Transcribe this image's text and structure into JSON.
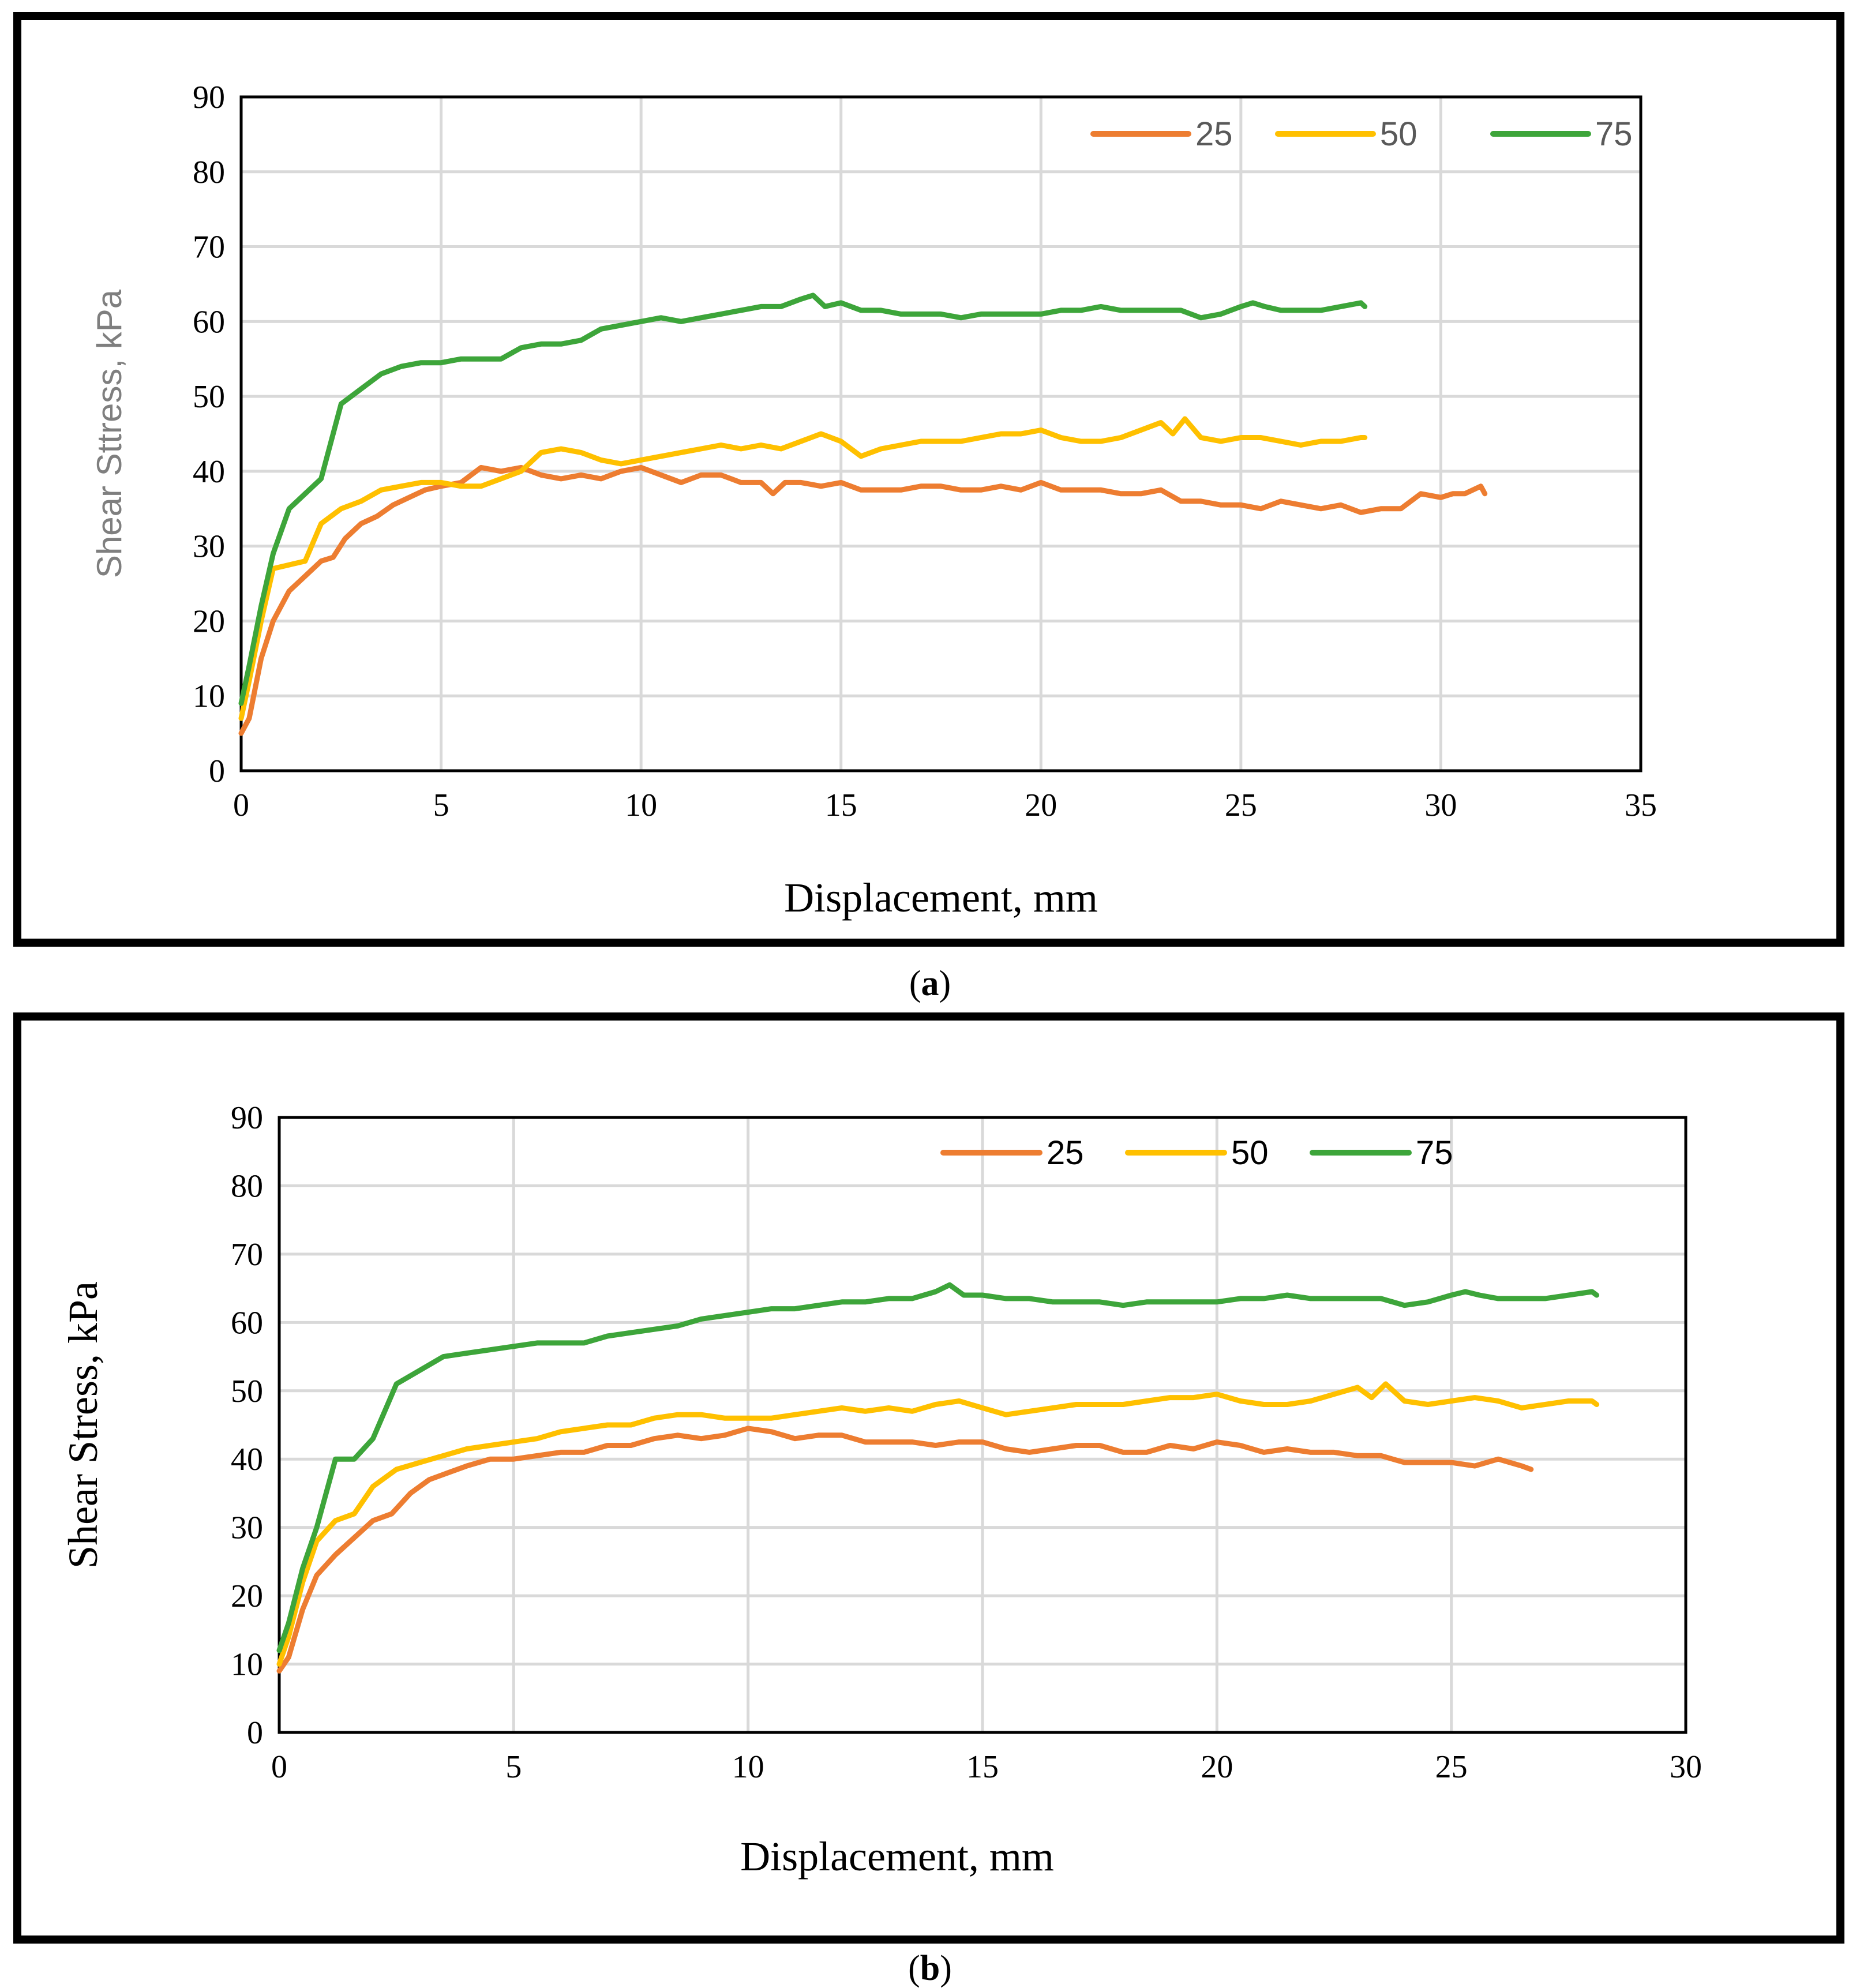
{
  "colors": {
    "s25": "#ED7D31",
    "s50": "#FFC000",
    "s75": "#3DA53A"
  },
  "chart_data": [
    {
      "id": "a",
      "type": "line",
      "caption_letter": "a",
      "xlabel": "Displacement, mm",
      "ylabel": "Shear Sttress, kPa",
      "xlim": [
        0,
        35
      ],
      "ylim": [
        0,
        90
      ],
      "xticks": [
        "0",
        "5",
        "10",
        "15",
        "20",
        "25",
        "30",
        "35"
      ],
      "yticks": [
        "0",
        "10",
        "20",
        "30",
        "40",
        "50",
        "60",
        "70",
        "80",
        "90"
      ],
      "grid": true,
      "legend_position": "top-right",
      "series": [
        {
          "name": "25",
          "color_key": "s25",
          "x": [
            0,
            0.2,
            0.5,
            0.8,
            1.2,
            1.6,
            2,
            2.3,
            2.6,
            3,
            3.4,
            3.8,
            4.2,
            4.6,
            5,
            5.5,
            6,
            6.5,
            7,
            7.5,
            8,
            8.5,
            9,
            9.5,
            10,
            10.5,
            11,
            11.5,
            12,
            12.5,
            13,
            13.3,
            13.6,
            14,
            14.5,
            15,
            15.5,
            16,
            16.5,
            17,
            17.5,
            18,
            18.5,
            19,
            19.5,
            20,
            20.5,
            21,
            21.5,
            22,
            22.5,
            23,
            23.5,
            24,
            24.5,
            25,
            25.5,
            26,
            26.5,
            27,
            27.5,
            28,
            28.5,
            29,
            29.5,
            30,
            30.3,
            30.6,
            31,
            31.1
          ],
          "values": [
            5,
            7,
            15,
            20,
            24,
            26,
            28,
            28.5,
            31,
            33,
            34,
            35.5,
            36.5,
            37.5,
            38,
            38.5,
            40.5,
            40,
            40.5,
            39.5,
            39,
            39.5,
            39,
            40,
            40.5,
            39.5,
            38.5,
            39.5,
            39.5,
            38.5,
            38.5,
            37,
            38.5,
            38.5,
            38,
            38.5,
            37.5,
            37.5,
            37.5,
            38,
            38,
            37.5,
            37.5,
            38,
            37.5,
            38.5,
            37.5,
            37.5,
            37.5,
            37,
            37,
            37.5,
            36,
            36,
            35.5,
            35.5,
            35,
            36,
            35.5,
            35,
            35.5,
            34.5,
            35,
            35,
            37,
            36.5,
            37,
            37,
            38,
            37
          ]
        },
        {
          "name": "50",
          "color_key": "s50",
          "x": [
            0,
            0.2,
            0.5,
            0.8,
            1.2,
            1.6,
            2,
            2.5,
            3,
            3.5,
            4,
            4.5,
            5,
            5.5,
            6,
            6.5,
            7,
            7.5,
            8,
            8.5,
            9,
            9.5,
            10,
            10.5,
            11,
            11.5,
            12,
            12.5,
            13,
            13.5,
            14,
            14.5,
            15,
            15.5,
            16,
            16.5,
            17,
            17.5,
            18,
            18.5,
            19,
            19.5,
            20,
            20.5,
            21,
            21.5,
            22,
            22.5,
            23,
            23.3,
            23.6,
            24,
            24.5,
            25,
            25.5,
            26,
            26.5,
            27,
            27.5,
            28,
            28.1
          ],
          "values": [
            7,
            12,
            20,
            27,
            27.5,
            28,
            33,
            35,
            36,
            37.5,
            38,
            38.5,
            38.5,
            38,
            38,
            39,
            40,
            42.5,
            43,
            42.5,
            41.5,
            41,
            41.5,
            42,
            42.5,
            43,
            43.5,
            43,
            43.5,
            43,
            44,
            45,
            44,
            42,
            43,
            43.5,
            44,
            44,
            44,
            44.5,
            45,
            45,
            45.5,
            44.5,
            44,
            44,
            44.5,
            45.5,
            46.5,
            45,
            47,
            44.5,
            44,
            44.5,
            44.5,
            44,
            43.5,
            44,
            44,
            44.5,
            44.5
          ]
        },
        {
          "name": "75",
          "color_key": "s75",
          "x": [
            0,
            0.2,
            0.5,
            0.8,
            1.2,
            1.6,
            2,
            2.5,
            3,
            3.5,
            4,
            4.5,
            5,
            5.5,
            6,
            6.5,
            7,
            7.5,
            8,
            8.5,
            9,
            9.5,
            10,
            10.5,
            11,
            11.5,
            12,
            12.5,
            13,
            13.5,
            14,
            14.3,
            14.6,
            15,
            15.5,
            16,
            16.5,
            17,
            17.5,
            18,
            18.5,
            19,
            19.5,
            20,
            20.5,
            21,
            21.5,
            22,
            22.5,
            23,
            23.5,
            24,
            24.5,
            25,
            25.3,
            25.6,
            26,
            26.5,
            27,
            27.5,
            28,
            28.1
          ],
          "values": [
            9,
            14,
            22,
            29,
            35,
            37,
            39,
            49,
            51,
            53,
            54,
            54.5,
            54.5,
            55,
            55,
            55,
            56.5,
            57,
            57,
            57.5,
            59,
            59.5,
            60,
            60.5,
            60,
            60.5,
            61,
            61.5,
            62,
            62,
            63,
            63.5,
            62,
            62.5,
            61.5,
            61.5,
            61,
            61,
            61,
            60.5,
            61,
            61,
            61,
            61,
            61.5,
            61.5,
            62,
            61.5,
            61.5,
            61.5,
            61.5,
            60.5,
            61,
            62,
            62.5,
            62,
            61.5,
            61.5,
            61.5,
            62,
            62.5,
            62
          ]
        }
      ]
    },
    {
      "id": "b",
      "type": "line",
      "caption_letter": "b",
      "xlabel": "Displacement, mm",
      "ylabel": "Shear Stress, kPa",
      "xlim": [
        0,
        30
      ],
      "ylim": [
        0,
        90
      ],
      "xticks": [
        "0",
        "5",
        "10",
        "15",
        "20",
        "25",
        "30"
      ],
      "yticks": [
        "0",
        "10",
        "20",
        "30",
        "40",
        "50",
        "60",
        "70",
        "80",
        "90"
      ],
      "grid": true,
      "legend_position": "top-right",
      "series": [
        {
          "name": "25",
          "color_key": "s25",
          "x": [
            0,
            0.2,
            0.5,
            0.8,
            1.2,
            1.6,
            2,
            2.4,
            2.8,
            3.2,
            3.6,
            4,
            4.5,
            5,
            5.5,
            6,
            6.5,
            7,
            7.5,
            8,
            8.5,
            9,
            9.5,
            10,
            10.5,
            11,
            11.5,
            12,
            12.5,
            13,
            13.5,
            14,
            14.5,
            15,
            15.5,
            16,
            16.5,
            17,
            17.5,
            18,
            18.5,
            19,
            19.5,
            20,
            20.5,
            21,
            21.5,
            22,
            22.5,
            23,
            23.5,
            24,
            24.5,
            25,
            25.5,
            26,
            26.5,
            26.7
          ],
          "values": [
            9,
            11,
            18,
            23,
            26,
            28.5,
            31,
            32,
            35,
            37,
            38,
            39,
            40,
            40,
            40.5,
            41,
            41,
            42,
            42,
            43,
            43.5,
            43,
            43.5,
            44.5,
            44,
            43,
            43.5,
            43.5,
            42.5,
            42.5,
            42.5,
            42,
            42.5,
            42.5,
            41.5,
            41,
            41.5,
            42,
            42,
            41,
            41,
            42,
            41.5,
            42.5,
            42,
            41,
            41.5,
            41,
            41,
            40.5,
            40.5,
            39.5,
            39.5,
            39.5,
            39,
            40,
            39,
            38.5
          ]
        },
        {
          "name": "50",
          "color_key": "s50",
          "x": [
            0,
            0.2,
            0.5,
            0.8,
            1.2,
            1.6,
            2,
            2.5,
            3,
            3.5,
            4,
            4.5,
            5,
            5.5,
            6,
            6.5,
            7,
            7.5,
            8,
            8.5,
            9,
            9.5,
            10,
            10.5,
            11,
            11.5,
            12,
            12.5,
            13,
            13.5,
            14,
            14.5,
            15,
            15.5,
            16,
            16.5,
            17,
            17.5,
            18,
            18.5,
            19,
            19.5,
            20,
            20.5,
            21,
            21.5,
            22,
            22.5,
            23,
            23.3,
            23.6,
            24,
            24.5,
            25,
            25.5,
            26,
            26.5,
            27,
            27.5,
            28,
            28.1
          ],
          "values": [
            10,
            14,
            22,
            28,
            31,
            32,
            36,
            38.5,
            39.5,
            40.5,
            41.5,
            42,
            42.5,
            43,
            44,
            44.5,
            45,
            45,
            46,
            46.5,
            46.5,
            46,
            46,
            46,
            46.5,
            47,
            47.5,
            47,
            47.5,
            47,
            48,
            48.5,
            47.5,
            46.5,
            47,
            47.5,
            48,
            48,
            48,
            48.5,
            49,
            49,
            49.5,
            48.5,
            48,
            48,
            48.5,
            49.5,
            50.5,
            49,
            51,
            48.5,
            48,
            48.5,
            49,
            48.5,
            47.5,
            48,
            48.5,
            48.5,
            48
          ]
        },
        {
          "name": "75",
          "color_key": "s75",
          "x": [
            0,
            0.2,
            0.5,
            0.8,
            1.2,
            1.6,
            2,
            2.5,
            3,
            3.5,
            4,
            4.5,
            5,
            5.5,
            6,
            6.5,
            7,
            7.5,
            8,
            8.5,
            9,
            9.5,
            10,
            10.5,
            11,
            11.5,
            12,
            12.5,
            13,
            13.5,
            14,
            14.3,
            14.6,
            15,
            15.5,
            16,
            16.5,
            17,
            17.5,
            18,
            18.5,
            19,
            19.5,
            20,
            20.5,
            21,
            21.5,
            22,
            22.5,
            23,
            23.5,
            24,
            24.5,
            25,
            25.3,
            25.6,
            26,
            26.5,
            27,
            27.5,
            28,
            28.1
          ],
          "values": [
            12,
            16,
            24,
            30,
            40,
            40,
            43,
            51,
            53,
            55,
            55.5,
            56,
            56.5,
            57,
            57,
            57,
            58,
            58.5,
            59,
            59.5,
            60.5,
            61,
            61.5,
            62,
            62,
            62.5,
            63,
            63,
            63.5,
            63.5,
            64.5,
            65.5,
            64,
            64,
            63.5,
            63.5,
            63,
            63,
            63,
            62.5,
            63,
            63,
            63,
            63,
            63.5,
            63.5,
            64,
            63.5,
            63.5,
            63.5,
            63.5,
            62.5,
            63,
            64,
            64.5,
            64,
            63.5,
            63.5,
            63.5,
            64,
            64.5,
            64
          ]
        }
      ]
    }
  ]
}
